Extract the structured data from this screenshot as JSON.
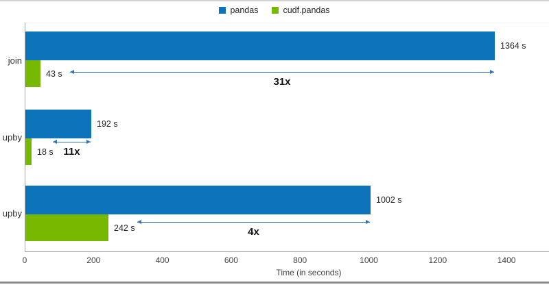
{
  "legend": {
    "items": [
      {
        "label": "pandas",
        "color": "#0d73ba",
        "icon": "square-swatch"
      },
      {
        "label": "cudf.pandas",
        "color": "#76b900",
        "icon": "square-swatch"
      }
    ]
  },
  "chart_data": {
    "type": "bar",
    "orientation": "horizontal",
    "title": "",
    "categories": [
      "join",
      "upby",
      "upby"
    ],
    "series": [
      {
        "name": "pandas",
        "color": "#0d73ba",
        "values": [
          1364,
          192,
          1002
        ],
        "labels": [
          "1364 s",
          "192 s",
          "1002 s"
        ]
      },
      {
        "name": "cudf.pandas",
        "color": "#76b900",
        "values": [
          43,
          18,
          242
        ],
        "labels": [
          "43 s",
          "18 s",
          "242 s"
        ]
      }
    ],
    "speedup_annotations": [
      {
        "label": "31x"
      },
      {
        "label": "11x"
      },
      {
        "label": "4x"
      }
    ],
    "annotation_arrow_color": "#2e75b6",
    "xlabel": "Time (in seconds)",
    "x_ticks": [
      "0",
      "200",
      "400",
      "600",
      "800",
      "1000",
      "1200",
      "1400"
    ],
    "xlim": [
      0,
      1400
    ],
    "grid": false,
    "legend_position": "top-center"
  }
}
